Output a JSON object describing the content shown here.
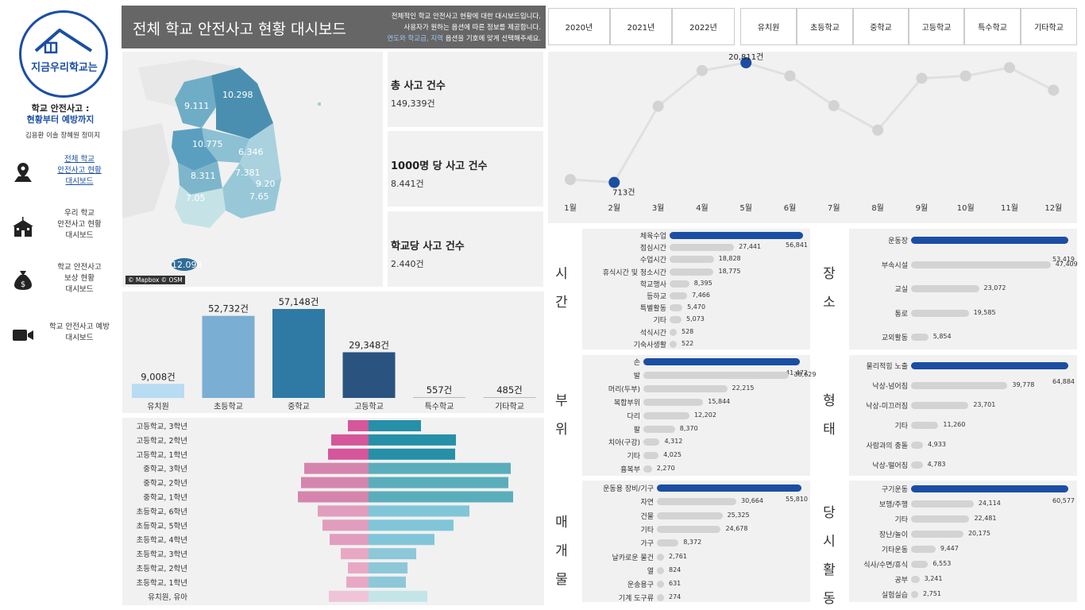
{
  "sidebar": {
    "logo_text": "지금우리학교는",
    "subtitle_line1": "학교 안전사고 :",
    "subtitle_line2": "현황부터 예방까지",
    "authors": "김용환  이솔  장혜원  정미지",
    "items": [
      {
        "label": "전체 학교\n안전사고 현황\n대시보드",
        "icon": "map-pin-icon",
        "active": true
      },
      {
        "label": "우리 학교\n안전사고 현황\n대시보드",
        "icon": "school-icon",
        "active": false
      },
      {
        "label": "학교 안전사고\n보상 현황\n대시보드",
        "icon": "money-bag-icon",
        "active": false
      },
      {
        "label": "학교 안전사고 예방\n대시보드",
        "icon": "video-camera-icon",
        "active": false
      }
    ]
  },
  "header": {
    "title": "전체 학교 안전사고 현황 대시보드",
    "desc_line1": "전체적인 학교 안전사고 현황에 대한 대시보드입니다.",
    "desc_line2": "사용자가 원하는 옵션에 따른 정보를 제공합니다.",
    "desc_line3_hl": "연도와 학교급, 지역",
    "desc_line3_rest": " 옵션을 기호에 맞게 선택해주세요."
  },
  "filters": {
    "years": [
      "2020년",
      "2021년",
      "2022년"
    ],
    "levels": [
      "유치원",
      "초등학교",
      "중학교",
      "고등학교",
      "특수학교",
      "기타학교"
    ]
  },
  "map": {
    "credit": "© Mapbox © OSM",
    "region_values": [
      "9.111",
      "10.298",
      "10.775",
      "6.346",
      "8.311",
      "7.381",
      "9.20",
      "7.65",
      "7.05",
      "12.098"
    ]
  },
  "kpis": [
    {
      "title": "총 사고 건수",
      "value": "149,339건"
    },
    {
      "title": "1000명 당 사고 건수",
      "value": "8.441건"
    },
    {
      "title": "학교당 사고 건수",
      "value": "2.440건"
    }
  ],
  "colors": {
    "accent": "#1b4ea3",
    "bar_grey": "#d3d3d3",
    "header": "#666666"
  },
  "monthly": {
    "months": [
      "1월",
      "2월",
      "3월",
      "4월",
      "5월",
      "6월",
      "7월",
      "8월",
      "9월",
      "10월",
      "11월",
      "12월"
    ],
    "values": [
      1200,
      713,
      13500,
      19500,
      20811,
      18600,
      13600,
      9500,
      18200,
      18600,
      20000,
      16200
    ],
    "max_label": "20,811건",
    "min_label": "713건",
    "max_index": 4,
    "min_index": 1
  },
  "school_bars": {
    "categories": [
      "유치원",
      "초등학교",
      "중학교",
      "고등학교",
      "특수학교",
      "기타학교"
    ],
    "values": [
      9008,
      52732,
      57148,
      29348,
      557,
      485
    ],
    "labels": [
      "9,008건",
      "52,732건",
      "57,148건",
      "29,348건",
      "557건",
      "485건"
    ],
    "colors": [
      "#b8dcf2",
      "#7aaed3",
      "#2f7aa4",
      "#2a5380",
      "#bbbbbb",
      "#bbbbbb"
    ]
  },
  "age_pyramid": {
    "rows": [
      {
        "label": "고등학교, 3학년",
        "left": 26,
        "right": 66
      },
      {
        "label": "고등학교, 2학년",
        "left": 47,
        "right": 110
      },
      {
        "label": "고등학교, 1학년",
        "left": 51,
        "right": 109
      },
      {
        "label": "중학교, 3학년",
        "left": 81,
        "right": 179
      },
      {
        "label": "중학교, 2학년",
        "left": 85,
        "right": 176
      },
      {
        "label": "중학교, 1학년",
        "left": 89,
        "right": 182
      },
      {
        "label": "초등학교, 6학년",
        "left": 64,
        "right": 127
      },
      {
        "label": "초등학교, 5학년",
        "left": 58,
        "right": 107
      },
      {
        "label": "초등학교, 4학년",
        "left": 49,
        "right": 83
      },
      {
        "label": "초등학교, 3학년",
        "left": 35,
        "right": 60
      },
      {
        "label": "초등학교, 2학년",
        "left": 26,
        "right": 49
      },
      {
        "label": "초등학교, 1학년",
        "left": 28,
        "right": 47
      },
      {
        "label": "유치원, 유아",
        "left": 50,
        "right": 74
      }
    ]
  },
  "breakdowns": {
    "time": {
      "title": "시간",
      "items": [
        {
          "label": "체육수업",
          "value": 56841,
          "text": "56,841"
        },
        {
          "label": "점심시간",
          "value": 27441,
          "text": "27,441"
        },
        {
          "label": "수업시간",
          "value": 18828,
          "text": "18,828"
        },
        {
          "label": "휴식시간 및 청소시간",
          "value": 18775,
          "text": "18,775"
        },
        {
          "label": "학교행사",
          "value": 8395,
          "text": "8,395"
        },
        {
          "label": "등하교",
          "value": 7466,
          "text": "7,466"
        },
        {
          "label": "특별활동",
          "value": 5470,
          "text": "5,470"
        },
        {
          "label": "기타",
          "value": 5073,
          "text": "5,073"
        },
        {
          "label": "석식시간",
          "value": 528,
          "text": "528"
        },
        {
          "label": "기숙사생활",
          "value": 522,
          "text": "522"
        }
      ]
    },
    "place": {
      "title": "장소",
      "items": [
        {
          "label": "운동장",
          "value": 53419,
          "text": "53,419"
        },
        {
          "label": "부속시설",
          "value": 47409,
          "text": "47,409"
        },
        {
          "label": "교실",
          "value": 23072,
          "text": "23,072"
        },
        {
          "label": "통로",
          "value": 19585,
          "text": "19,585"
        },
        {
          "label": "교외활동",
          "value": 5854,
          "text": "5,854"
        }
      ]
    },
    "part": {
      "title": "부위",
      "items": [
        {
          "label": "손",
          "value": 41472,
          "text": "41,472"
        },
        {
          "label": "발",
          "value": 38629,
          "text": "38,629"
        },
        {
          "label": "머리(두부)",
          "value": 22215,
          "text": "22,215"
        },
        {
          "label": "복합부위",
          "value": 15844,
          "text": "15,844"
        },
        {
          "label": "다리",
          "value": 12202,
          "text": "12,202"
        },
        {
          "label": "팔",
          "value": 8370,
          "text": "8,370"
        },
        {
          "label": "치아(구강)",
          "value": 4312,
          "text": "4,312"
        },
        {
          "label": "기타",
          "value": 4025,
          "text": "4,025"
        },
        {
          "label": "흉복부",
          "value": 2270,
          "text": "2,270"
        }
      ]
    },
    "type": {
      "title": "형태",
      "items": [
        {
          "label": "물리적힘 노출",
          "value": 64884,
          "text": "64,884"
        },
        {
          "label": "낙상-넘어짐",
          "value": 39778,
          "text": "39,778"
        },
        {
          "label": "낙상-미끄러짐",
          "value": 23701,
          "text": "23,701"
        },
        {
          "label": "기타",
          "value": 11260,
          "text": "11,260"
        },
        {
          "label": "사람과의 충돌",
          "value": 4933,
          "text": "4,933"
        },
        {
          "label": "낙상-떨어짐",
          "value": 4783,
          "text": "4,783"
        }
      ]
    },
    "object": {
      "title": "매개물",
      "items": [
        {
          "label": "운동용 장비/기구",
          "value": 55810,
          "text": "55,810"
        },
        {
          "label": "자연",
          "value": 30664,
          "text": "30,664"
        },
        {
          "label": "건물",
          "value": 25325,
          "text": "25,325"
        },
        {
          "label": "기타",
          "value": 24678,
          "text": "24,678"
        },
        {
          "label": "가구",
          "value": 8372,
          "text": "8,372"
        },
        {
          "label": "날카로운 물건",
          "value": 2761,
          "text": "2,761"
        },
        {
          "label": "열",
          "value": 824,
          "text": "824"
        },
        {
          "label": "운송용구",
          "value": 631,
          "text": "631"
        },
        {
          "label": "기계 도구류",
          "value": 274,
          "text": "274"
        }
      ]
    },
    "activity": {
      "title": "당시활동",
      "items": [
        {
          "label": "구기운동",
          "value": 60577,
          "text": "60,577"
        },
        {
          "label": "보행/주행",
          "value": 24114,
          "text": "24,114"
        },
        {
          "label": "기타",
          "value": 22481,
          "text": "22,481"
        },
        {
          "label": "장난/놀이",
          "value": 20175,
          "text": "20,175"
        },
        {
          "label": "기타운동",
          "value": 9447,
          "text": "9,447"
        },
        {
          "label": "식사/수면/휴식",
          "value": 6553,
          "text": "6,553"
        },
        {
          "label": "공부",
          "value": 3241,
          "text": "3,241"
        },
        {
          "label": "실험실습",
          "value": 2751,
          "text": "2,751"
        }
      ]
    }
  }
}
